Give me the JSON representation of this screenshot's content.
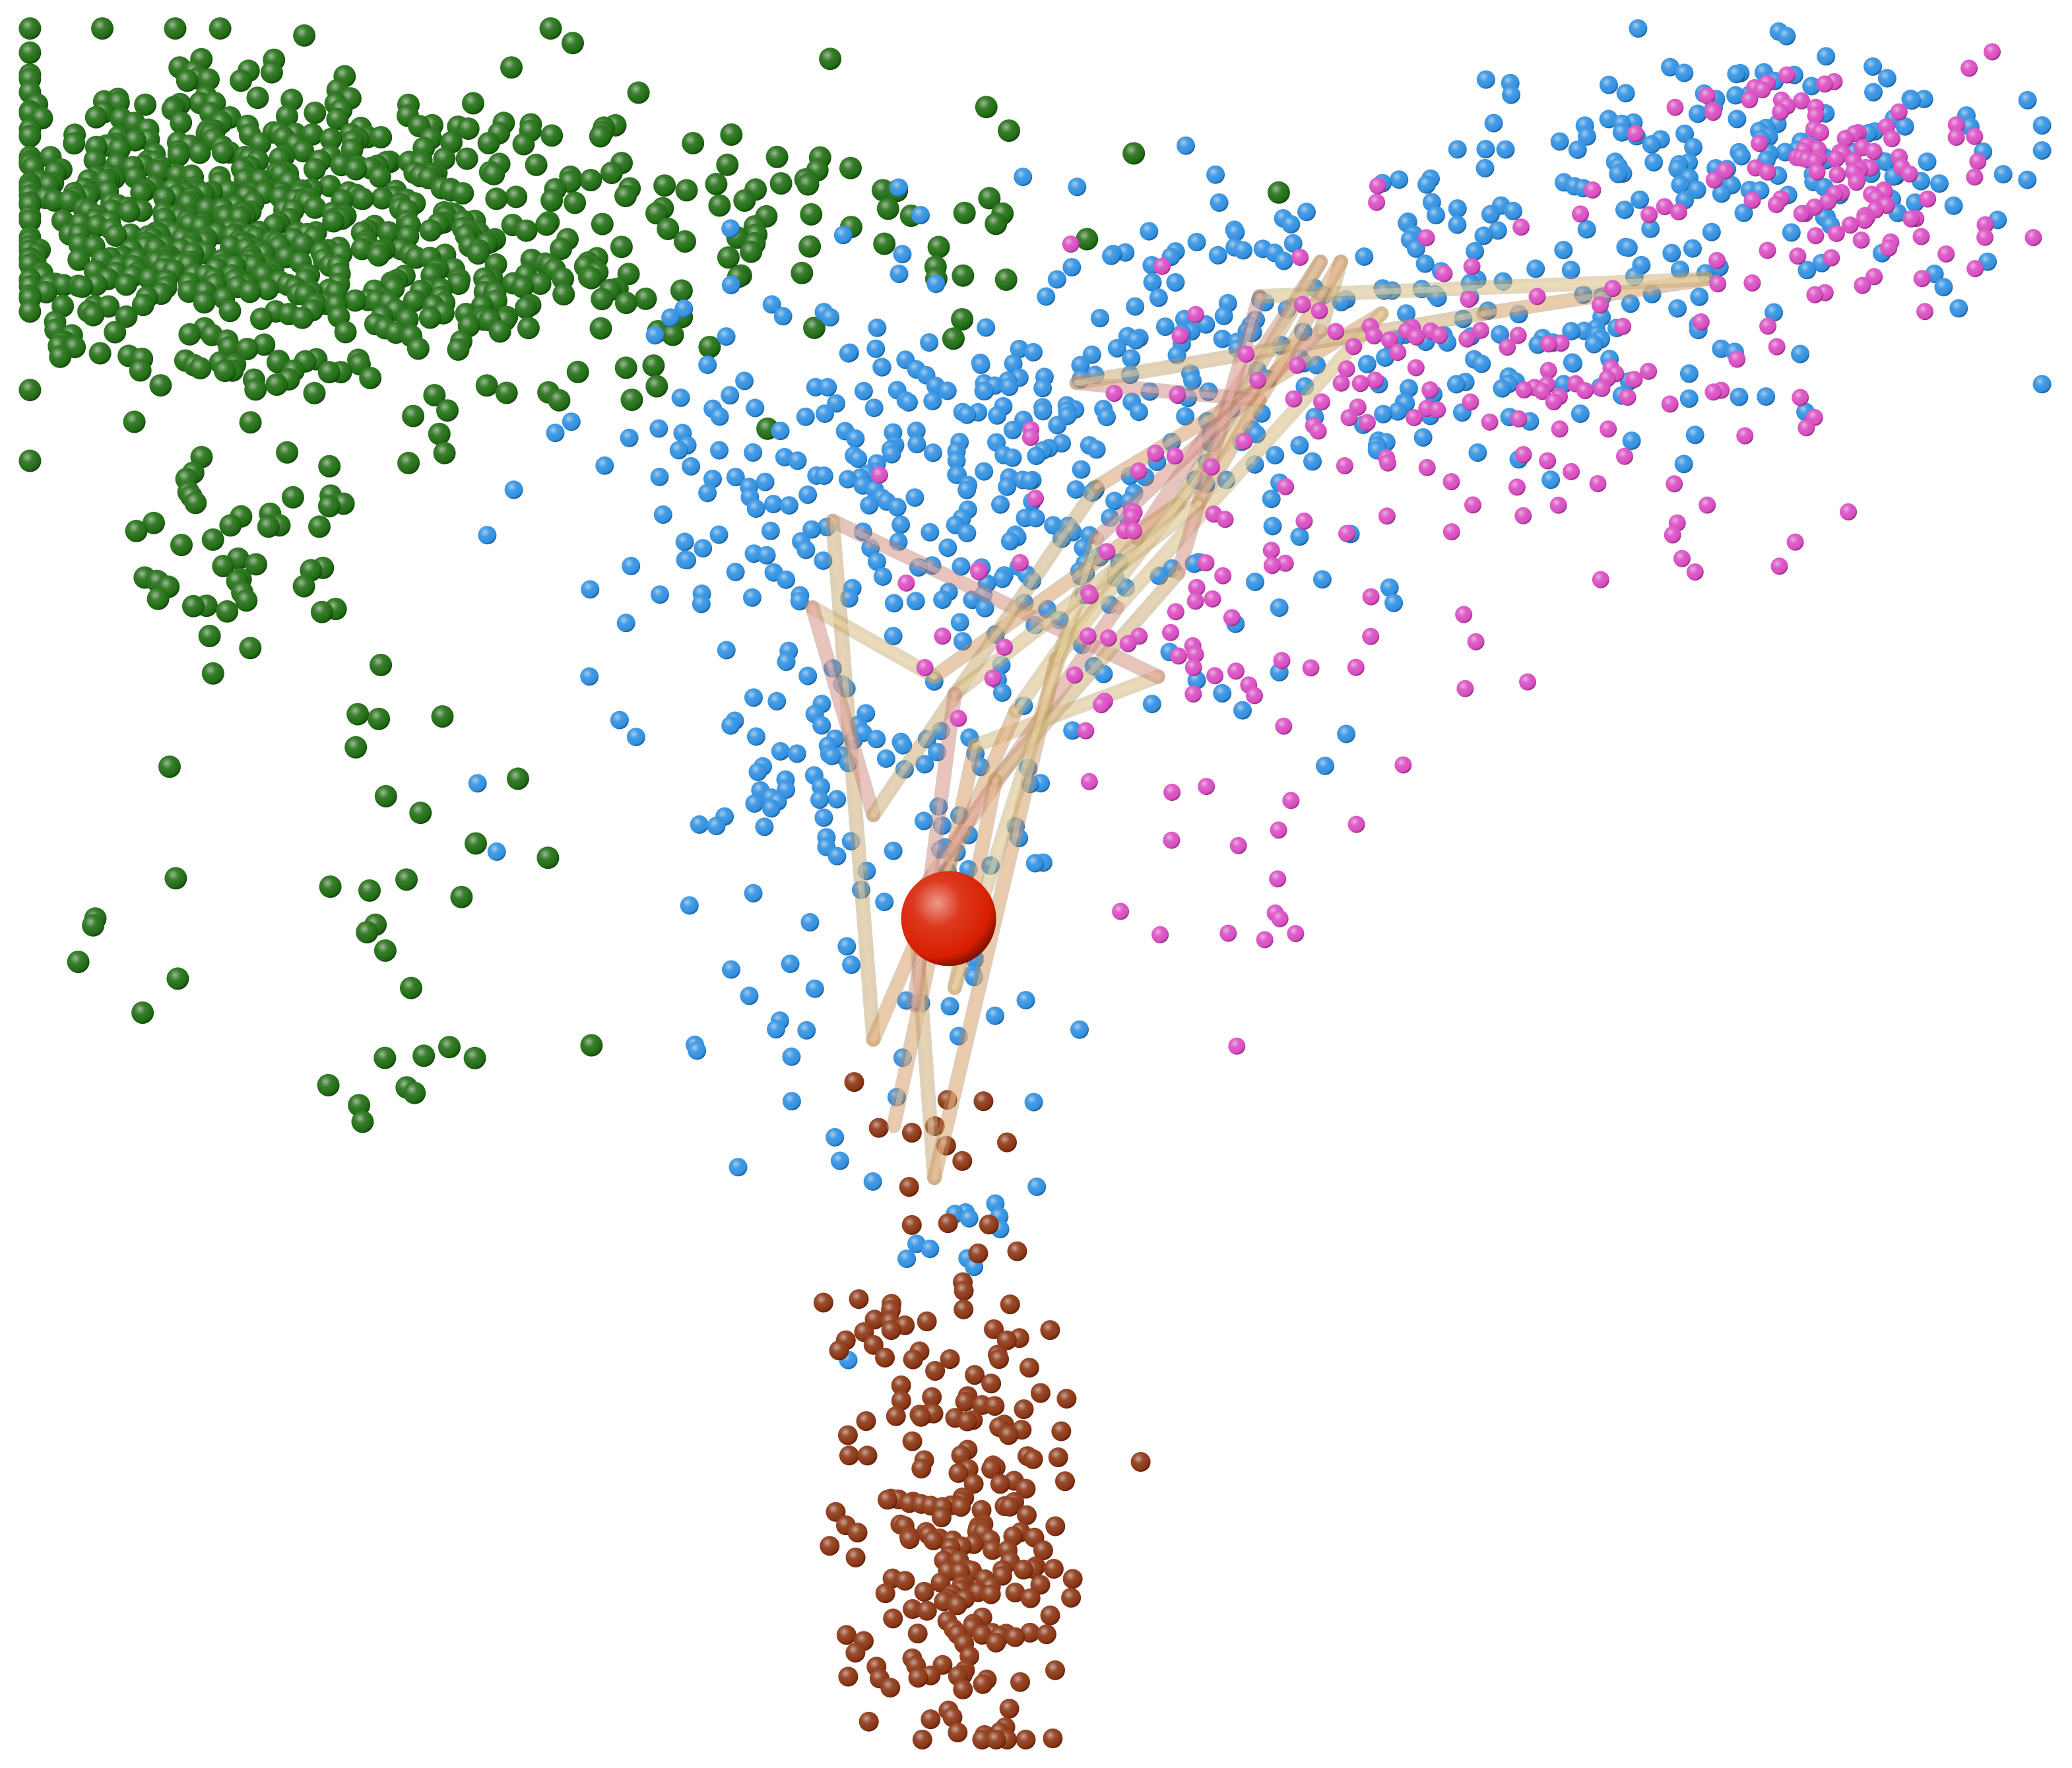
{
  "chart_data": {
    "type": "scatter",
    "dimensions": "3d-projection",
    "title": "",
    "xlabel": "",
    "ylabel": "",
    "legend": "none",
    "axes_visible": false,
    "grid": false,
    "xlim": [
      0,
      1
    ],
    "ylim": [
      0,
      1
    ],
    "series": [
      {
        "color": "#1f6b12",
        "marker": "sphere",
        "clusters": [
          {
            "count": 520,
            "center": [
              0.1,
              0.88
            ],
            "spread": [
              0.065,
              0.045
            ]
          },
          {
            "count": 170,
            "center": [
              0.21,
              0.86
            ],
            "spread": [
              0.085,
              0.04
            ]
          },
          {
            "count": 70,
            "center": [
              0.34,
              0.89
            ],
            "spread": [
              0.09,
              0.03
            ]
          },
          {
            "count": 48,
            "center": [
              0.11,
              0.69
            ],
            "spread": [
              0.04,
              0.035
            ]
          },
          {
            "count": 26,
            "center": [
              0.16,
              0.52
            ],
            "spread": [
              0.05,
              0.07
            ]
          },
          {
            "count": 8,
            "center": [
              0.19,
              0.39
            ],
            "spread": [
              0.02,
              0.018
            ]
          }
        ]
      },
      {
        "color": "#2f8fe0",
        "marker": "sphere",
        "clusters": [
          {
            "count": 300,
            "center": [
              0.47,
              0.74
            ],
            "spread": [
              0.085,
              0.06
            ]
          },
          {
            "count": 210,
            "center": [
              0.67,
              0.83
            ],
            "spread": [
              0.1,
              0.045
            ]
          },
          {
            "count": 140,
            "center": [
              0.85,
              0.92
            ],
            "spread": [
              0.075,
              0.035
            ]
          },
          {
            "count": 90,
            "center": [
              0.41,
              0.57
            ],
            "spread": [
              0.06,
              0.045
            ]
          },
          {
            "count": 42,
            "center": [
              0.42,
              0.45
            ],
            "spread": [
              0.045,
              0.055
            ]
          },
          {
            "count": 12,
            "center": [
              0.45,
              0.3
            ],
            "spread": [
              0.03,
              0.03
            ]
          }
        ]
      },
      {
        "color": "#d84bc0",
        "marker": "sphere",
        "clusters": [
          {
            "count": 110,
            "center": [
              0.9,
              0.91
            ],
            "spread": [
              0.045,
              0.035
            ]
          },
          {
            "count": 120,
            "center": [
              0.72,
              0.79
            ],
            "spread": [
              0.075,
              0.045
            ]
          },
          {
            "count": 70,
            "center": [
              0.58,
              0.66
            ],
            "spread": [
              0.065,
              0.05
            ]
          },
          {
            "count": 14,
            "center": [
              0.6,
              0.5
            ],
            "spread": [
              0.04,
              0.035
            ]
          }
        ]
      },
      {
        "color": "#8a3412",
        "marker": "sphere",
        "clusters": [
          {
            "count": 190,
            "center": [
              0.465,
              0.11
            ],
            "spread": [
              0.026,
              0.055
            ]
          },
          {
            "count": 40,
            "center": [
              0.455,
              0.23
            ],
            "spread": [
              0.038,
              0.035
            ]
          },
          {
            "count": 10,
            "center": [
              0.45,
              0.34
            ],
            "spread": [
              0.02,
              0.03
            ]
          }
        ]
      }
    ],
    "trajectory": {
      "color": "#f2b070",
      "style": "translucent tubes",
      "points": [
        [
          0.43,
          0.36
        ],
        [
          0.47,
          0.58
        ],
        [
          0.56,
          0.62
        ],
        [
          0.4,
          0.71
        ],
        [
          0.42,
          0.41
        ],
        [
          0.49,
          0.6
        ],
        [
          0.55,
          0.7
        ],
        [
          0.64,
          0.86
        ],
        [
          0.57,
          0.72
        ],
        [
          0.45,
          0.62
        ],
        [
          0.39,
          0.66
        ],
        [
          0.42,
          0.54
        ],
        [
          0.53,
          0.73
        ],
        [
          0.67,
          0.83
        ],
        [
          0.54,
          0.66
        ],
        [
          0.44,
          0.49
        ],
        [
          0.45,
          0.33
        ],
        [
          0.51,
          0.63
        ],
        [
          0.61,
          0.78
        ],
        [
          0.52,
          0.79
        ],
        [
          0.72,
          0.83
        ],
        [
          0.83,
          0.85
        ],
        [
          0.61,
          0.84
        ],
        [
          0.57,
          0.68
        ],
        [
          0.48,
          0.56
        ],
        [
          0.46,
          0.44
        ],
        [
          0.53,
          0.7
        ],
        [
          0.64,
          0.82
        ],
        [
          0.65,
          0.86
        ],
        [
          0.58,
          0.72
        ],
        [
          0.46,
          0.61
        ],
        [
          0.44,
          0.43
        ]
      ]
    },
    "highlight": {
      "color": "#d81e00",
      "marker": "large sphere",
      "point": [
        0.457,
        0.48
      ]
    }
  }
}
